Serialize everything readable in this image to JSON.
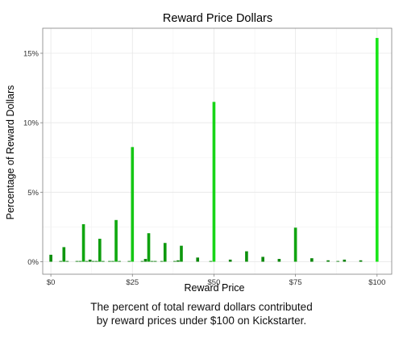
{
  "caption": {
    "line1": "The percent of total reward dollars contributed",
    "line2": "by reward prices under $100 on Kickstarter."
  },
  "chart_data": {
    "type": "bar",
    "title": "Reward Price Dollars",
    "xlabel": "Reward Price",
    "ylabel": "Percentage of Reward Dollars",
    "xlim": [
      -2.5,
      104.5
    ],
    "ylim": [
      -0.9,
      16.8
    ],
    "x_ticks": [
      0,
      25,
      50,
      75,
      100
    ],
    "x_tick_labels": [
      "$0",
      "$25",
      "$50",
      "$75",
      "$100"
    ],
    "y_ticks": [
      0,
      5,
      10,
      15
    ],
    "y_tick_labels": [
      "0%",
      "5%",
      "10%",
      "15%"
    ],
    "grid": true,
    "legend": "none",
    "colors": {
      "low": "#0a7a0a",
      "high": "#19e619",
      "grid": "#e6e6e6",
      "frame": "#808080"
    },
    "series": [
      {
        "x": [
          0,
          1,
          2,
          3,
          4,
          5,
          6,
          7,
          8,
          9,
          10,
          11,
          12,
          13,
          14,
          15,
          16,
          17,
          18,
          19,
          20,
          21,
          22,
          23,
          24,
          25,
          26,
          27,
          28,
          29,
          30,
          31,
          32,
          33,
          34,
          35,
          36,
          37,
          38,
          39,
          40,
          41,
          42,
          43,
          44,
          45,
          46,
          47,
          48,
          49,
          50,
          51,
          52,
          53,
          54,
          55,
          56,
          57,
          58,
          59,
          60,
          61,
          62,
          63,
          64,
          65,
          66,
          67,
          68,
          69,
          70,
          71,
          72,
          73,
          74,
          75,
          76,
          77,
          78,
          79,
          80,
          81,
          82,
          83,
          84,
          85,
          86,
          87,
          88,
          89,
          90,
          91,
          92,
          93,
          94,
          95,
          96,
          97,
          98,
          99,
          100
        ],
        "values": [
          0.5,
          0.0,
          0.0,
          0.05,
          1.05,
          0.05,
          0.0,
          0.0,
          0.05,
          0.05,
          2.7,
          0.05,
          0.15,
          0.05,
          0.05,
          1.65,
          0.05,
          0.0,
          0.05,
          0.05,
          3.0,
          0.05,
          0.0,
          0.0,
          0.05,
          8.25,
          0.0,
          0.0,
          0.05,
          0.2,
          2.05,
          0.05,
          0.05,
          0.0,
          0.05,
          1.35,
          0.0,
          0.0,
          0.05,
          0.1,
          1.15,
          0.0,
          0.0,
          0.0,
          0.0,
          0.3,
          0.0,
          0.0,
          0.0,
          0.05,
          11.5,
          0.0,
          0.0,
          0.0,
          0.0,
          0.15,
          0.0,
          0.0,
          0.0,
          0.0,
          0.75,
          0.0,
          0.0,
          0.0,
          0.0,
          0.35,
          0.0,
          0.0,
          0.0,
          0.0,
          0.2,
          0.0,
          0.0,
          0.0,
          0.0,
          2.45,
          0.0,
          0.0,
          0.0,
          0.0,
          0.25,
          0.0,
          0.0,
          0.0,
          0.0,
          0.1,
          0.0,
          0.0,
          0.05,
          0.0,
          0.15,
          0.0,
          0.0,
          0.0,
          0.0,
          0.1,
          0.0,
          0.0,
          0.0,
          0.0,
          16.1
        ]
      }
    ]
  }
}
